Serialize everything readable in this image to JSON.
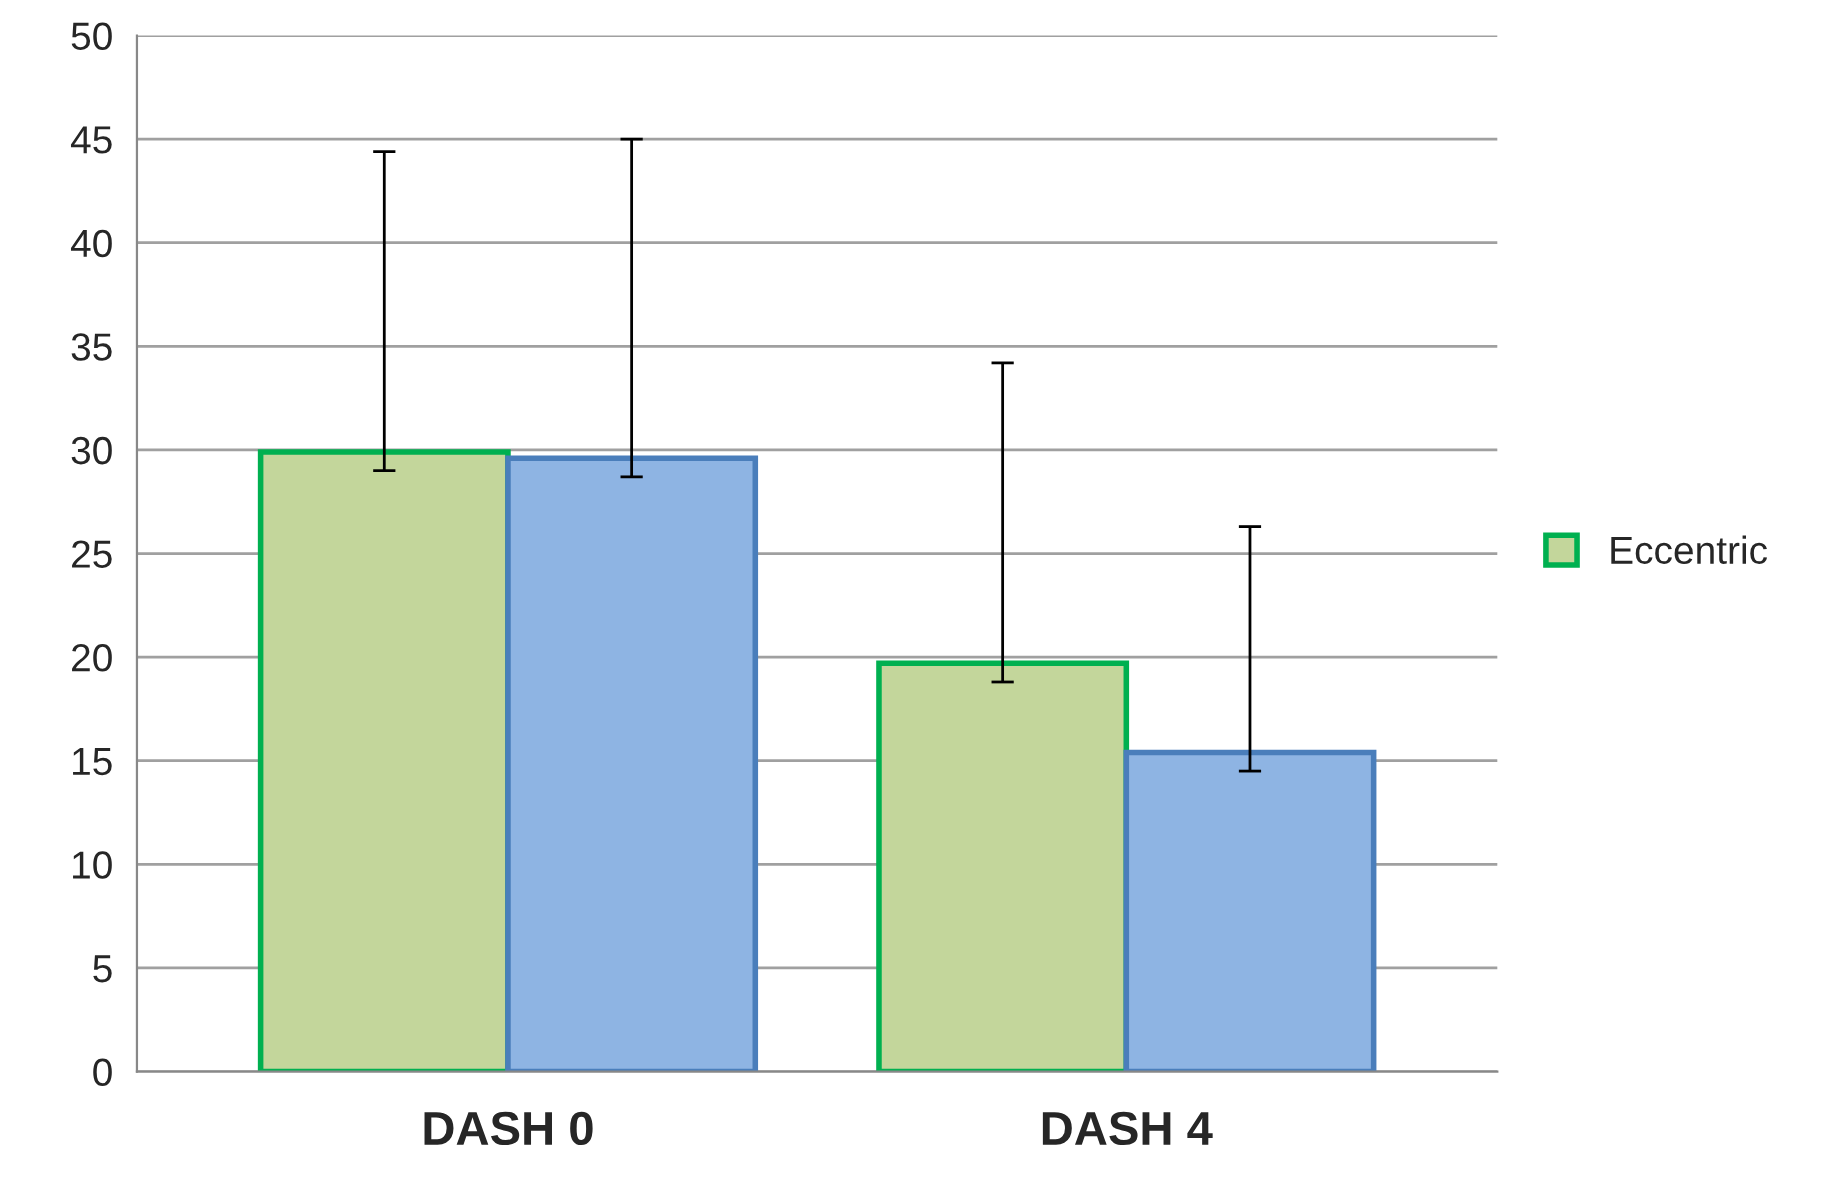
{
  "chart_data": {
    "type": "bar",
    "categories": [
      "DASH 0",
      "DASH 4"
    ],
    "series": [
      {
        "name": "Eccentric",
        "color": "#c3d69b",
        "values": [
          29.9,
          19.7
        ],
        "errors": [
          [
            29.0,
            44.4
          ],
          [
            18.8,
            34.2
          ]
        ]
      },
      {
        "color": "#8eb4e3",
        "values": [
          29.6,
          15.4
        ],
        "errors": [
          [
            28.7,
            45.0
          ],
          [
            14.5,
            26.3
          ]
        ]
      }
    ],
    "ylim": [
      0,
      50
    ],
    "yticks": [
      0,
      5,
      10,
      15,
      20,
      25,
      30,
      35,
      40,
      45,
      50
    ],
    "grid": "y",
    "legend": "right"
  }
}
